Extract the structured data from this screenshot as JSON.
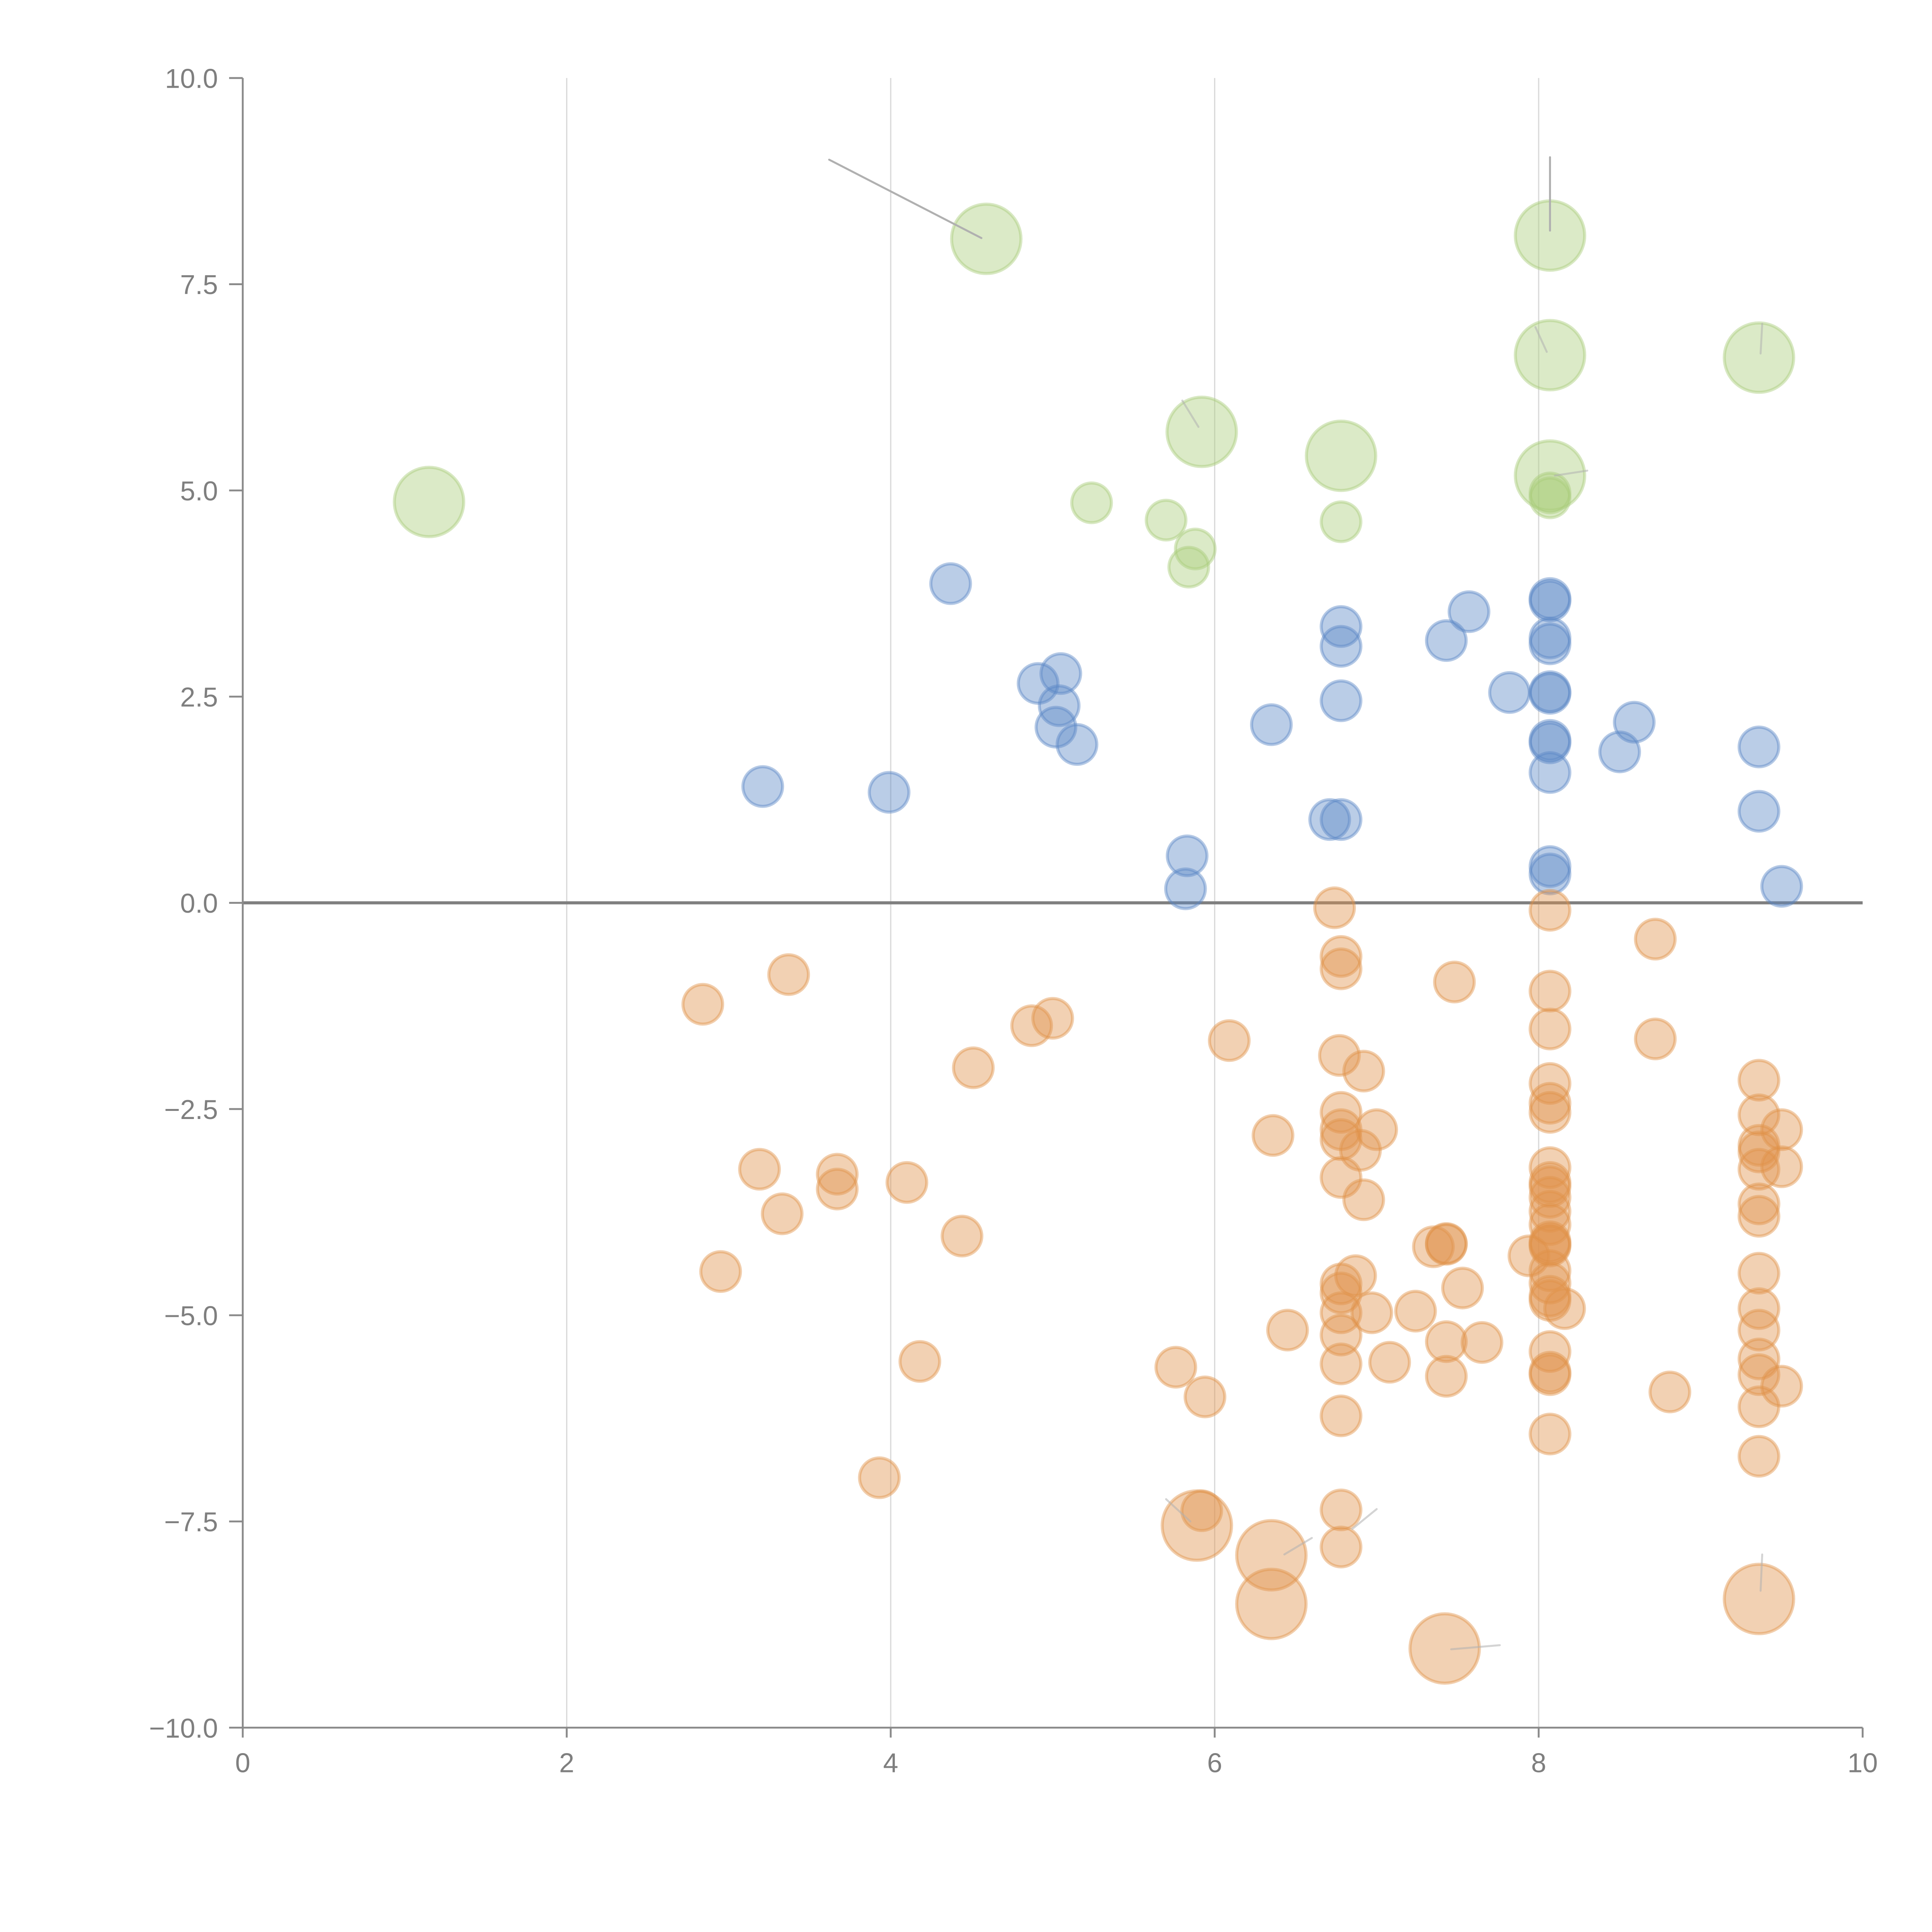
{
  "chart_data": {
    "type": "scatter",
    "title": "",
    "xlabel": "",
    "ylabel": "",
    "xlim": [
      0,
      10
    ],
    "ylim": [
      -10,
      10
    ],
    "grid": "vertical",
    "x_ticks": [
      "0",
      "2",
      "4",
      "6",
      "8",
      "10"
    ],
    "y_ticks": [
      "10.0",
      "7.5",
      "5.0",
      "2.5",
      "0.0",
      "−2.5",
      "−5.0",
      "−7.5",
      "−10.0"
    ],
    "x_tick_values": [
      0,
      2,
      4,
      6,
      8,
      10
    ],
    "y_tick_values": [
      10,
      7.5,
      5,
      2.5,
      0,
      -2.5,
      -5,
      -7.5,
      -10
    ],
    "reference_line_y": 0,
    "legend": "none",
    "series": [
      {
        "name": "green",
        "color": "#a9cc7a",
        "points": [
          {
            "x": 1.15,
            "y": 4.86,
            "size": "large"
          },
          {
            "x": 4.59,
            "y": 8.05,
            "size": "large"
          },
          {
            "x": 5.92,
            "y": 5.71,
            "size": "large"
          },
          {
            "x": 6.78,
            "y": 5.42,
            "size": "large"
          },
          {
            "x": 8.07,
            "y": 8.09,
            "size": "large"
          },
          {
            "x": 8.07,
            "y": 6.64,
            "size": "large"
          },
          {
            "x": 8.07,
            "y": 5.18,
            "size": "large"
          },
          {
            "x": 9.36,
            "y": 6.61,
            "size": "large"
          },
          {
            "x": 5.24,
            "y": 4.85,
            "size": "small"
          },
          {
            "x": 5.7,
            "y": 4.64,
            "size": "small"
          },
          {
            "x": 5.88,
            "y": 4.29,
            "size": "small"
          },
          {
            "x": 5.84,
            "y": 4.07,
            "size": "small"
          },
          {
            "x": 6.78,
            "y": 4.62,
            "size": "small"
          },
          {
            "x": 8.07,
            "y": 4.97,
            "size": "small"
          },
          {
            "x": 8.07,
            "y": 4.91,
            "size": "small"
          }
        ]
      },
      {
        "name": "blue",
        "color": "#5b87c5",
        "points": [
          {
            "x": 4.37,
            "y": 3.87,
            "size": "small"
          },
          {
            "x": 3.21,
            "y": 1.41,
            "size": "small"
          },
          {
            "x": 3.99,
            "y": 1.34,
            "size": "small"
          },
          {
            "x": 4.91,
            "y": 2.66,
            "size": "small"
          },
          {
            "x": 5.05,
            "y": 2.78,
            "size": "small"
          },
          {
            "x": 5.04,
            "y": 2.39,
            "size": "small"
          },
          {
            "x": 5.02,
            "y": 2.13,
            "size": "small"
          },
          {
            "x": 5.15,
            "y": 1.92,
            "size": "small"
          },
          {
            "x": 5.83,
            "y": 0.57,
            "size": "small"
          },
          {
            "x": 5.82,
            "y": 0.17,
            "size": "small"
          },
          {
            "x": 6.35,
            "y": 2.16,
            "size": "small"
          },
          {
            "x": 6.71,
            "y": 1.01,
            "size": "small"
          },
          {
            "x": 6.78,
            "y": 1.01,
            "size": "small"
          },
          {
            "x": 6.78,
            "y": 3.35,
            "size": "small"
          },
          {
            "x": 6.78,
            "y": 3.11,
            "size": "small"
          },
          {
            "x": 6.78,
            "y": 2.45,
            "size": "small"
          },
          {
            "x": 7.43,
            "y": 3.18,
            "size": "small"
          },
          {
            "x": 7.57,
            "y": 3.53,
            "size": "small"
          },
          {
            "x": 7.82,
            "y": 2.55,
            "size": "small"
          },
          {
            "x": 8.07,
            "y": 3.69,
            "size": "small"
          },
          {
            "x": 8.07,
            "y": 3.66,
            "size": "small"
          },
          {
            "x": 8.07,
            "y": 3.21,
            "size": "small"
          },
          {
            "x": 8.07,
            "y": 3.14,
            "size": "small"
          },
          {
            "x": 8.07,
            "y": 2.56,
            "size": "small"
          },
          {
            "x": 8.07,
            "y": 2.54,
            "size": "small"
          },
          {
            "x": 8.07,
            "y": 1.97,
            "size": "small"
          },
          {
            "x": 8.07,
            "y": 1.94,
            "size": "small"
          },
          {
            "x": 8.07,
            "y": 1.58,
            "size": "small"
          },
          {
            "x": 8.07,
            "y": 0.44,
            "size": "small"
          },
          {
            "x": 8.07,
            "y": 0.35,
            "size": "small"
          },
          {
            "x": 8.5,
            "y": 1.83,
            "size": "small"
          },
          {
            "x": 8.59,
            "y": 2.19,
            "size": "small"
          },
          {
            "x": 9.36,
            "y": 1.89,
            "size": "small"
          },
          {
            "x": 9.36,
            "y": 1.11,
            "size": "small"
          },
          {
            "x": 9.5,
            "y": 0.2,
            "size": "small"
          }
        ]
      },
      {
        "name": "orange",
        "color": "#e0924a",
        "points": [
          {
            "x": 5.89,
            "y": -7.55,
            "size": "large"
          },
          {
            "x": 6.35,
            "y": -7.91,
            "size": "large"
          },
          {
            "x": 6.35,
            "y": -8.5,
            "size": "large"
          },
          {
            "x": 7.42,
            "y": -9.04,
            "size": "large"
          },
          {
            "x": 9.36,
            "y": -8.44,
            "size": "large"
          },
          {
            "x": 2.84,
            "y": -1.23,
            "size": "small"
          },
          {
            "x": 3.37,
            "y": -0.87,
            "size": "small"
          },
          {
            "x": 2.95,
            "y": -4.47,
            "size": "small"
          },
          {
            "x": 3.19,
            "y": -3.23,
            "size": "small"
          },
          {
            "x": 3.33,
            "y": -3.77,
            "size": "small"
          },
          {
            "x": 3.67,
            "y": -3.29,
            "size": "small"
          },
          {
            "x": 3.67,
            "y": -3.47,
            "size": "small"
          },
          {
            "x": 4.1,
            "y": -3.39,
            "size": "small"
          },
          {
            "x": 3.93,
            "y": -6.97,
            "size": "small"
          },
          {
            "x": 4.18,
            "y": -5.56,
            "size": "small"
          },
          {
            "x": 4.44,
            "y": -4.04,
            "size": "small"
          },
          {
            "x": 4.51,
            "y": -2.0,
            "size": "small"
          },
          {
            "x": 4.87,
            "y": -1.49,
            "size": "small"
          },
          {
            "x": 5.0,
            "y": -1.4,
            "size": "small"
          },
          {
            "x": 5.76,
            "y": -5.63,
            "size": "small"
          },
          {
            "x": 5.94,
            "y": -5.99,
            "size": "small"
          },
          {
            "x": 5.92,
            "y": -7.37,
            "size": "small"
          },
          {
            "x": 6.09,
            "y": -1.67,
            "size": "small"
          },
          {
            "x": 6.36,
            "y": -2.82,
            "size": "small"
          },
          {
            "x": 6.45,
            "y": -5.18,
            "size": "small"
          },
          {
            "x": 6.74,
            "y": -0.06,
            "size": "small"
          },
          {
            "x": 6.78,
            "y": -0.65,
            "size": "small"
          },
          {
            "x": 6.78,
            "y": -0.8,
            "size": "small"
          },
          {
            "x": 6.77,
            "y": -1.85,
            "size": "small"
          },
          {
            "x": 6.92,
            "y": -2.04,
            "size": "small"
          },
          {
            "x": 6.78,
            "y": -2.54,
            "size": "small"
          },
          {
            "x": 6.78,
            "y": -2.75,
            "size": "small"
          },
          {
            "x": 6.78,
            "y": -2.87,
            "size": "small"
          },
          {
            "x": 7.0,
            "y": -2.75,
            "size": "small"
          },
          {
            "x": 6.9,
            "y": -3.0,
            "size": "small"
          },
          {
            "x": 6.78,
            "y": -3.33,
            "size": "small"
          },
          {
            "x": 6.92,
            "y": -3.6,
            "size": "small"
          },
          {
            "x": 6.87,
            "y": -4.52,
            "size": "small"
          },
          {
            "x": 6.78,
            "y": -4.62,
            "size": "small"
          },
          {
            "x": 6.78,
            "y": -4.73,
            "size": "small"
          },
          {
            "x": 6.78,
            "y": -4.97,
            "size": "small"
          },
          {
            "x": 6.97,
            "y": -4.97,
            "size": "small"
          },
          {
            "x": 6.78,
            "y": -5.24,
            "size": "small"
          },
          {
            "x": 6.78,
            "y": -5.59,
            "size": "small"
          },
          {
            "x": 7.08,
            "y": -5.57,
            "size": "small"
          },
          {
            "x": 6.78,
            "y": -6.22,
            "size": "small"
          },
          {
            "x": 6.78,
            "y": -7.36,
            "size": "small"
          },
          {
            "x": 6.78,
            "y": -7.81,
            "size": "small"
          },
          {
            "x": 7.24,
            "y": -4.95,
            "size": "small"
          },
          {
            "x": 7.35,
            "y": -4.17,
            "size": "small"
          },
          {
            "x": 7.43,
            "y": -4.13,
            "size": "small"
          },
          {
            "x": 7.43,
            "y": -4.14,
            "size": "small"
          },
          {
            "x": 7.53,
            "y": -4.67,
            "size": "small"
          },
          {
            "x": 7.43,
            "y": -5.32,
            "size": "small"
          },
          {
            "x": 7.65,
            "y": -5.33,
            "size": "small"
          },
          {
            "x": 7.43,
            "y": -5.74,
            "size": "small"
          },
          {
            "x": 7.48,
            "y": -0.96,
            "size": "small"
          },
          {
            "x": 7.94,
            "y": -4.28,
            "size": "small"
          },
          {
            "x": 8.07,
            "y": -0.09,
            "size": "small"
          },
          {
            "x": 8.07,
            "y": -1.07,
            "size": "small"
          },
          {
            "x": 8.07,
            "y": -1.53,
            "size": "small"
          },
          {
            "x": 8.07,
            "y": -2.19,
            "size": "small"
          },
          {
            "x": 8.07,
            "y": -2.43,
            "size": "small"
          },
          {
            "x": 8.07,
            "y": -2.54,
            "size": "small"
          },
          {
            "x": 8.07,
            "y": -3.21,
            "size": "small"
          },
          {
            "x": 8.07,
            "y": -3.39,
            "size": "small"
          },
          {
            "x": 8.07,
            "y": -3.44,
            "size": "small"
          },
          {
            "x": 8.07,
            "y": -3.57,
            "size": "small"
          },
          {
            "x": 8.07,
            "y": -3.74,
            "size": "small"
          },
          {
            "x": 8.07,
            "y": -3.9,
            "size": "small"
          },
          {
            "x": 8.07,
            "y": -4.11,
            "size": "small"
          },
          {
            "x": 8.07,
            "y": -4.14,
            "size": "small"
          },
          {
            "x": 8.07,
            "y": -4.16,
            "size": "small"
          },
          {
            "x": 8.07,
            "y": -4.46,
            "size": "small"
          },
          {
            "x": 8.07,
            "y": -4.61,
            "size": "small"
          },
          {
            "x": 8.07,
            "y": -4.77,
            "size": "small"
          },
          {
            "x": 8.07,
            "y": -4.82,
            "size": "small"
          },
          {
            "x": 8.07,
            "y": -5.44,
            "size": "small"
          },
          {
            "x": 8.07,
            "y": -5.69,
            "size": "small"
          },
          {
            "x": 8.07,
            "y": -5.72,
            "size": "small"
          },
          {
            "x": 8.07,
            "y": -6.44,
            "size": "small"
          },
          {
            "x": 8.16,
            "y": -4.92,
            "size": "small"
          },
          {
            "x": 8.72,
            "y": -0.44,
            "size": "small"
          },
          {
            "x": 8.72,
            "y": -1.65,
            "size": "small"
          },
          {
            "x": 8.81,
            "y": -5.93,
            "size": "small"
          },
          {
            "x": 9.36,
            "y": -2.15,
            "size": "small"
          },
          {
            "x": 9.36,
            "y": -2.57,
            "size": "small"
          },
          {
            "x": 9.36,
            "y": -2.94,
            "size": "small"
          },
          {
            "x": 9.36,
            "y": -3.02,
            "size": "small"
          },
          {
            "x": 9.36,
            "y": -3.23,
            "size": "small"
          },
          {
            "x": 9.36,
            "y": -3.65,
            "size": "small"
          },
          {
            "x": 9.36,
            "y": -3.8,
            "size": "small"
          },
          {
            "x": 9.36,
            "y": -4.49,
            "size": "small"
          },
          {
            "x": 9.36,
            "y": -4.92,
            "size": "small"
          },
          {
            "x": 9.36,
            "y": -5.18,
            "size": "small"
          },
          {
            "x": 9.36,
            "y": -5.53,
            "size": "small"
          },
          {
            "x": 9.36,
            "y": -5.72,
            "size": "small"
          },
          {
            "x": 9.36,
            "y": -6.11,
            "size": "small"
          },
          {
            "x": 9.36,
            "y": -6.71,
            "size": "small"
          },
          {
            "x": 9.5,
            "y": -2.75,
            "size": "small"
          },
          {
            "x": 9.5,
            "y": -3.2,
            "size": "small"
          },
          {
            "x": 9.5,
            "y": -5.86,
            "size": "small"
          }
        ]
      }
    ],
    "annotation_leaders": [
      {
        "from": {
          "x": 3.62,
          "y": 9.01
        },
        "to": {
          "x": 4.56,
          "y": 8.06
        },
        "color": "#b0b0b0"
      },
      {
        "from": {
          "x": 8.07,
          "y": 9.04
        },
        "to": {
          "x": 8.07,
          "y": 8.15
        },
        "color": "#b0b0b0"
      },
      {
        "from": {
          "x": 5.8,
          "y": 6.09
        },
        "to": {
          "x": 5.9,
          "y": 5.77
        },
        "color": "#ffffff"
      },
      {
        "from": {
          "x": 7.98,
          "y": 6.98
        },
        "to": {
          "x": 8.05,
          "y": 6.68
        },
        "color": "#ffffff"
      },
      {
        "from": {
          "x": 8.1,
          "y": 5.18
        },
        "to": {
          "x": 8.3,
          "y": 5.24
        },
        "color": "#ffffff"
      },
      {
        "from": {
          "x": 9.38,
          "y": 7.02
        },
        "to": {
          "x": 9.37,
          "y": 6.66
        },
        "color": "#ffffff"
      },
      {
        "from": {
          "x": 5.7,
          "y": -7.23
        },
        "to": {
          "x": 5.85,
          "y": -7.5
        },
        "color": "#ffffff"
      },
      {
        "from": {
          "x": 6.43,
          "y": -7.9
        },
        "to": {
          "x": 6.6,
          "y": -7.7
        },
        "color": "#ffffff"
      },
      {
        "from": {
          "x": 6.85,
          "y": -7.59
        },
        "to": {
          "x": 7.0,
          "y": -7.35
        },
        "color": "#ffffff"
      },
      {
        "from": {
          "x": 7.46,
          "y": -9.05
        },
        "to": {
          "x": 7.76,
          "y": -9.0
        },
        "color": "#ffffff"
      },
      {
        "from": {
          "x": 9.37,
          "y": -8.34
        },
        "to": {
          "x": 9.38,
          "y": -7.9
        },
        "color": "#ffffff"
      }
    ]
  }
}
